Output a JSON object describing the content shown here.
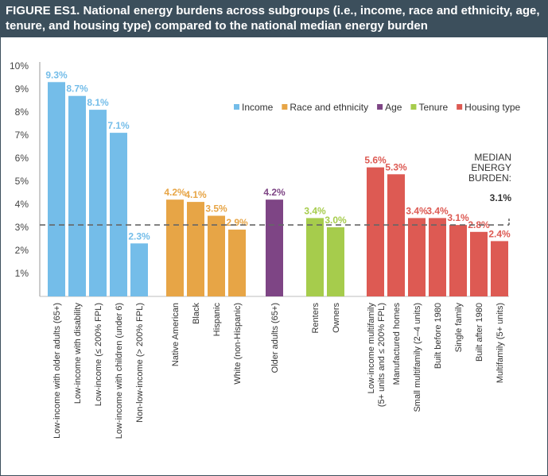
{
  "figure": {
    "title": "FIGURE ES1. National energy burdens across subgroups (i.e., income, race and ethnicity, age, tenure, and housing type) compared to the national median energy burden"
  },
  "colors": {
    "income": "#74bde9",
    "race": "#e7a546",
    "age": "#7e4585",
    "tenure": "#a6cc4c",
    "housing": "#dd5a53",
    "title_bar": "#3c4f5c",
    "text": "#333333",
    "median_line": "#666666"
  },
  "chart_data": {
    "type": "bar",
    "title": "National energy burdens across subgroups compared to the national median energy burden",
    "xlabel": "",
    "ylabel": "",
    "ylim": [
      0,
      10
    ],
    "yticks": [
      "1%",
      "2%",
      "3%",
      "4%",
      "5%",
      "6%",
      "7%",
      "8%",
      "9%",
      "10%"
    ],
    "legend": [
      {
        "key": "income",
        "label": "Income"
      },
      {
        "key": "race",
        "label": "Race and ethnicity"
      },
      {
        "key": "age",
        "label": "Age"
      },
      {
        "key": "tenure",
        "label": "Tenure"
      },
      {
        "key": "housing",
        "label": "Housing type"
      }
    ],
    "groups": [
      {
        "name": "Income",
        "key": "income",
        "bars": [
          {
            "category": "Low-income with older adults (65+)",
            "value": 9.3,
            "label": "9.3%"
          },
          {
            "category": "Low-income with disability",
            "value": 8.7,
            "label": "8.7%"
          },
          {
            "category": "Low-income (≤ 200% FPL)",
            "value": 8.1,
            "label": "8.1%"
          },
          {
            "category": "Low-income with children (under 6)",
            "value": 7.1,
            "label": "7.1%"
          },
          {
            "category": "Non-low-income (> 200% FPL)",
            "value": 2.3,
            "label": "2.3%"
          }
        ]
      },
      {
        "name": "Race and ethnicity",
        "key": "race",
        "bars": [
          {
            "category": "Native American",
            "value": 4.2,
            "label": "4.2%"
          },
          {
            "category": "Black",
            "value": 4.1,
            "label": "4.1%"
          },
          {
            "category": "Hispanic",
            "value": 3.5,
            "label": "3.5%"
          },
          {
            "category": "White (non-Hispanic)",
            "value": 2.9,
            "label": "2.9%"
          }
        ]
      },
      {
        "name": "Age",
        "key": "age",
        "bars": [
          {
            "category": "Older adults (65+)",
            "value": 4.2,
            "label": "4.2%"
          }
        ]
      },
      {
        "name": "Tenure",
        "key": "tenure",
        "bars": [
          {
            "category": "Renters",
            "value": 3.4,
            "label": "3.4%"
          },
          {
            "category": "Owners",
            "value": 3.0,
            "label": "3.0%"
          }
        ]
      },
      {
        "name": "Housing type",
        "key": "housing",
        "bars": [
          {
            "category": "Low-income multifamily\n(5+ units and ≤ 200% FPL)",
            "value": 5.6,
            "label": "5.6%"
          },
          {
            "category": "Manufactured homes",
            "value": 5.3,
            "label": "5.3%"
          },
          {
            "category": "Small multifamily (2–4 units)",
            "value": 3.4,
            "label": "3.4%"
          },
          {
            "category": "Built before 1980",
            "value": 3.4,
            "label": "3.4%"
          },
          {
            "category": "Single family",
            "value": 3.1,
            "label": "3.1%"
          },
          {
            "category": "Built after 1980",
            "value": 2.8,
            "label": "2.8%"
          },
          {
            "category": "Multifamily (5+ units)",
            "value": 2.4,
            "label": "2.4%"
          }
        ]
      }
    ],
    "median": {
      "value": 3.1,
      "label_lines": [
        "MEDIAN",
        "ENERGY",
        "BURDEN:"
      ],
      "value_label": "3.1%"
    }
  }
}
